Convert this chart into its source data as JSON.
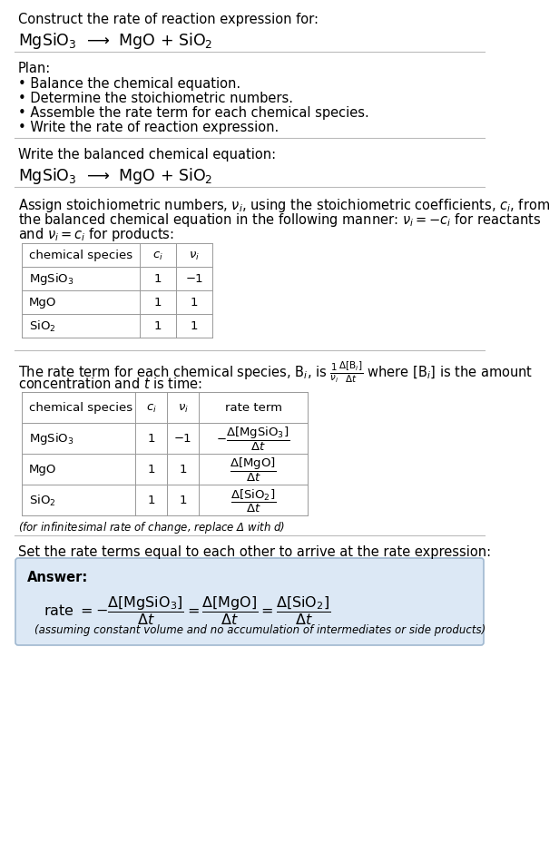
{
  "title": "Construct the rate of reaction expression for:",
  "reaction": "MgSiO$_3$  ⟶  MgO + SiO$_2$",
  "plan_header": "Plan:",
  "plan_items": [
    "• Balance the chemical equation.",
    "• Determine the stoichiometric numbers.",
    "• Assemble the rate term for each chemical species.",
    "• Write the rate of reaction expression."
  ],
  "balanced_header": "Write the balanced chemical equation:",
  "balanced_eq": "MgSiO$_3$  ⟶  MgO + SiO$_2$",
  "stoich_para1": "Assign stoichiometric numbers, $\\nu_i$, using the stoichiometric coefficients, $c_i$, from",
  "stoich_para2": "the balanced chemical equation in the following manner: $\\nu_i = -c_i$ for reactants",
  "stoich_para3": "and $\\nu_i = c_i$ for products:",
  "table1_headers": [
    "chemical species",
    "$c_i$",
    "$\\nu_i$"
  ],
  "table1_rows": [
    [
      "MgSiO$_3$",
      "1",
      "−1"
    ],
    [
      "MgO",
      "1",
      "1"
    ],
    [
      "SiO$_2$",
      "1",
      "1"
    ]
  ],
  "rate_para1": "The rate term for each chemical species, B$_i$, is $\\frac{1}{\\nu_i}\\frac{\\Delta[\\mathrm{B}_i]}{\\Delta t}$ where [B$_i$] is the amount",
  "rate_para2": "concentration and $t$ is time:",
  "table2_headers": [
    "chemical species",
    "$c_i$",
    "$\\nu_i$",
    "rate term"
  ],
  "table2_rows": [
    [
      "MgSiO$_3$",
      "1",
      "−1",
      "$-\\dfrac{\\Delta[\\mathrm{MgSiO_3}]}{\\Delta t}$"
    ],
    [
      "MgO",
      "1",
      "1",
      "$\\dfrac{\\Delta[\\mathrm{MgO}]}{\\Delta t}$"
    ],
    [
      "SiO$_2$",
      "1",
      "1",
      "$\\dfrac{\\Delta[\\mathrm{SiO_2}]}{\\Delta t}$"
    ]
  ],
  "infinitesimal_note": "(for infinitesimal rate of change, replace Δ with $d$)",
  "set_equal_header": "Set the rate terms equal to each other to arrive at the rate expression:",
  "answer_label": "Answer:",
  "answer_eq": "rate $= -\\dfrac{\\Delta[\\mathrm{MgSiO_3}]}{\\Delta t} = \\dfrac{\\Delta[\\mathrm{MgO}]}{\\Delta t} = \\dfrac{\\Delta[\\mathrm{SiO_2}]}{\\Delta t}$",
  "answer_note": "(assuming constant volume and no accumulation of intermediates or side products)",
  "answer_bg": "#dce8f5",
  "answer_border": "#a0b8d0",
  "bg_color": "#ffffff",
  "text_color": "#000000",
  "table_border_color": "#999999"
}
